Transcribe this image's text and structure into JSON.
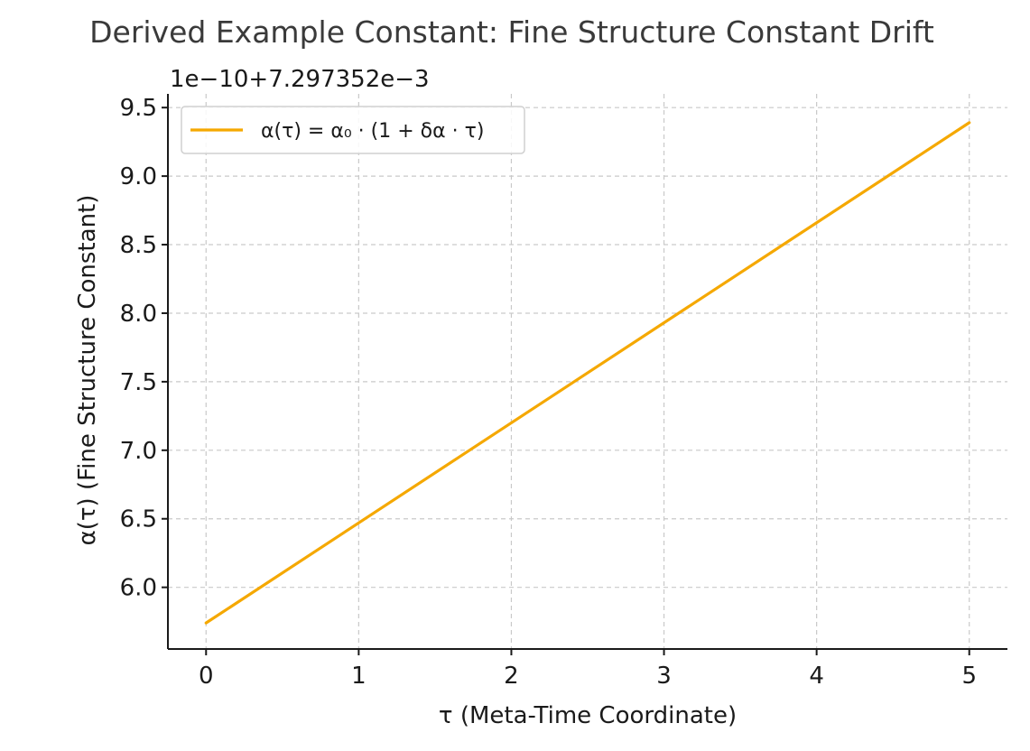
{
  "chart_data": {
    "type": "line",
    "title": "Derived Example Constant: Fine Structure Constant Drift",
    "xlabel": "τ (Meta-Time Coordinate)",
    "ylabel": "α(τ) (Fine Structure Constant)",
    "y_offset_label": "1e−10+7.297352e−3",
    "xlim": [
      -0.25,
      5.25
    ],
    "ylim": [
      5.55,
      9.6
    ],
    "xticks": [
      0,
      1,
      2,
      3,
      4,
      5
    ],
    "xtick_labels": [
      "0",
      "1",
      "2",
      "3",
      "4",
      "5"
    ],
    "yticks": [
      6.0,
      6.5,
      7.0,
      7.5,
      8.0,
      8.5,
      9.0,
      9.5
    ],
    "ytick_labels": [
      "6.0",
      "6.5",
      "7.0",
      "7.5",
      "8.0",
      "8.5",
      "9.0",
      "9.5"
    ],
    "grid": true,
    "legend_position": "top-left",
    "series": [
      {
        "name": "α(τ) = α₀ · (1 + δα · τ)",
        "color": "#f5a800",
        "x": [
          0,
          5
        ],
        "y": [
          5.74,
          9.39
        ]
      }
    ]
  }
}
